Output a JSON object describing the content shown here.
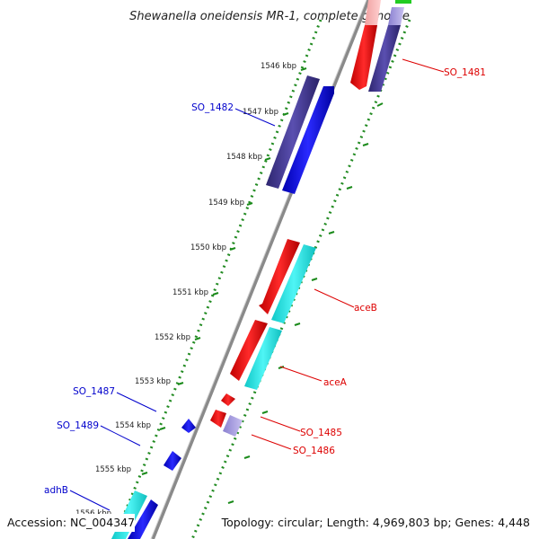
{
  "title": "Shewanella oneidensis MR-1, complete genome",
  "footer": {
    "accession": "Accession: NC_004347",
    "topology": "Topology: circular; Length: 4,969,803 bp; Genes: 4,448"
  },
  "ticks": [
    "1546 kbp",
    "1547 kbp",
    "1548 kbp",
    "1549 kbp",
    "1550 kbp",
    "1551 kbp",
    "1552 kbp",
    "1553 kbp",
    "1554 kbp",
    "1555 kbp",
    "1556 kbp"
  ],
  "genes": {
    "so_1481": "SO_1481",
    "so_1482": "SO_1482",
    "aceB": "aceB",
    "aceA": "aceA",
    "so_1485": "SO_1485",
    "so_1486": "SO_1486",
    "so_1487": "SO_1487",
    "so_1489": "SO_1489",
    "adhB": "adhB"
  },
  "colors": {
    "forward_label": "#dd0000",
    "reverse_label": "#0000cc",
    "red": "#ff1a1a",
    "blue": "#1a1aff",
    "navy": "#4a3f9a",
    "cyan": "#22e6e6",
    "track_green": "#228b22",
    "backbone": "#888888"
  }
}
